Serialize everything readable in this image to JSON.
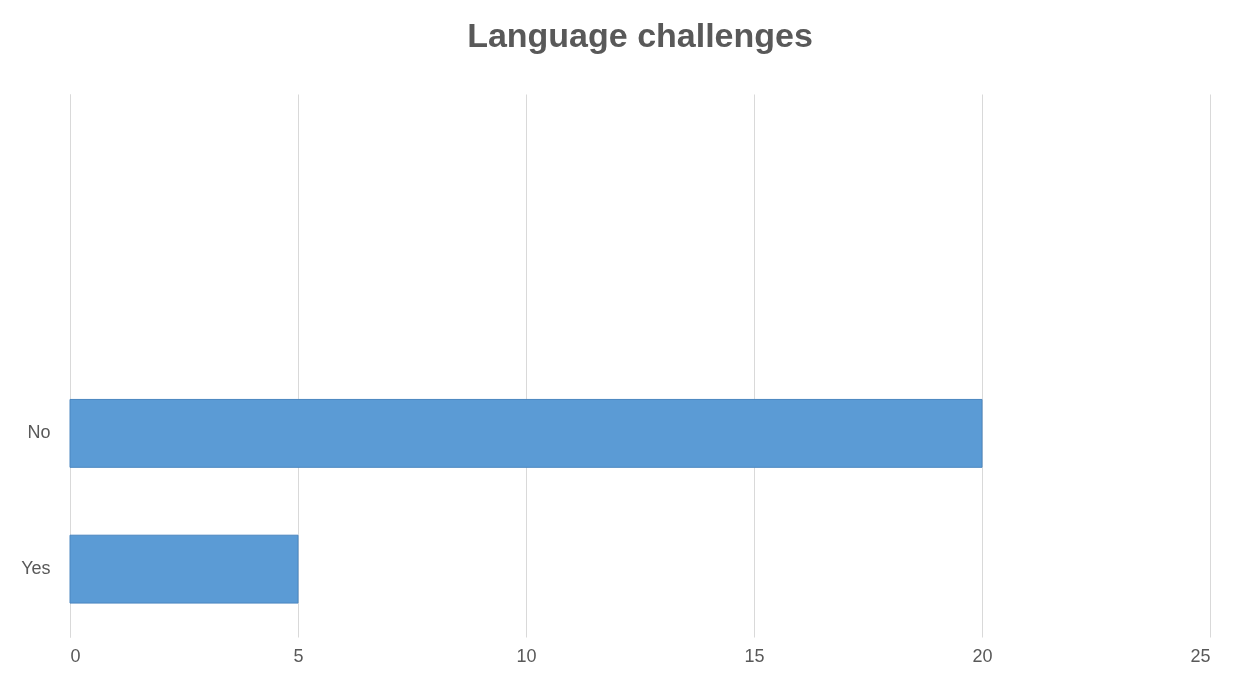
{
  "chart_data": {
    "type": "bar",
    "orientation": "horizontal",
    "title": "Language challenges",
    "categories": [
      null,
      null,
      "No",
      "Yes"
    ],
    "values": [
      null,
      null,
      20,
      5
    ],
    "color": "#5b9bd5",
    "xlim": [
      0,
      25
    ],
    "xticks": [
      0,
      5,
      10,
      15,
      20,
      25
    ],
    "grid": "x"
  }
}
